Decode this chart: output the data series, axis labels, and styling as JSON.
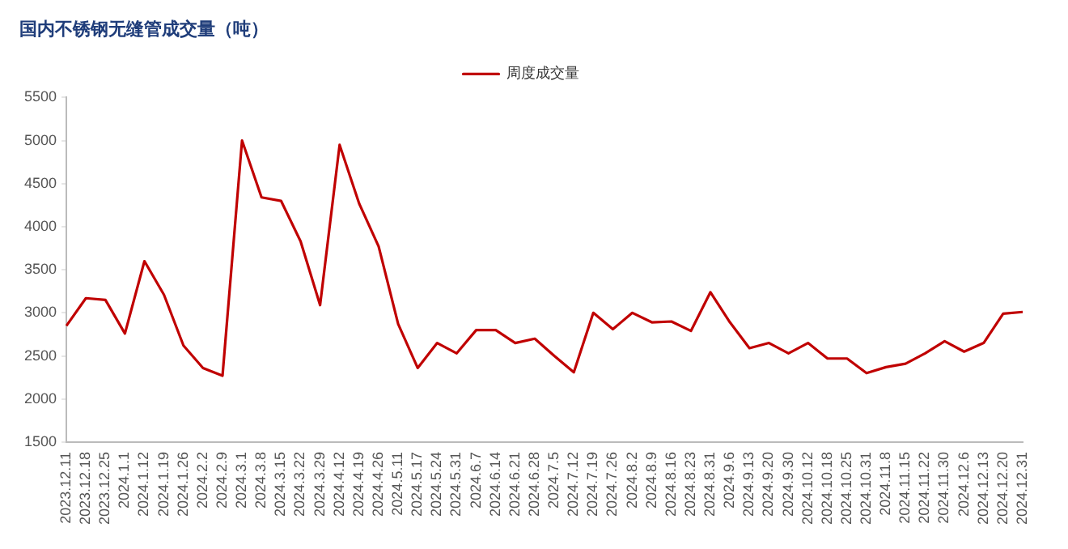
{
  "chart_data": {
    "type": "line",
    "title": "国内不锈钢无缝管成交量（吨）",
    "categories": [
      "2023.12.11",
      "2023.12.18",
      "2023.12.25",
      "2024.1.1",
      "2024.1.12",
      "2024.1.19",
      "2024.1.26",
      "2024.2.2",
      "2024.2.9",
      "2024.3.1",
      "2024.3.8",
      "2024.3.15",
      "2024.3.22",
      "2024.3.29",
      "2024.4.12",
      "2024.4.19",
      "2024.4.26",
      "2024.5.11",
      "2024.5.17",
      "2024.5.24",
      "2024.5.31",
      "2024.6.7",
      "2024.6.14",
      "2024.6.21",
      "2024.6.28",
      "2024.7.5",
      "2024.7.12",
      "2024.7.19",
      "2024.7.26",
      "2024.8.2",
      "2024.8.9",
      "2024.8.16",
      "2024.8.23",
      "2024.8.31",
      "2024.9.6",
      "2024.9.13",
      "2024.9.20",
      "2024.9.30",
      "2024.10.12",
      "2024.10.18",
      "2024.10.25",
      "2024.10.31",
      "2024.11.8",
      "2024.11.15",
      "2024.11.22",
      "2024.11.30",
      "2024.12.6",
      "2024.12.13",
      "2024.12.20",
      "2024.12.31"
    ],
    "series": [
      {
        "name": "周度成交量",
        "color": "#c00000",
        "values": [
          2850,
          3170,
          3150,
          2760,
          3600,
          3210,
          2620,
          2360,
          2270,
          5000,
          4340,
          4300,
          3830,
          3090,
          4950,
          4270,
          3770,
          2870,
          2360,
          2650,
          2530,
          2800,
          2800,
          2650,
          2700,
          2500,
          2310,
          3000,
          2810,
          3000,
          2890,
          2900,
          2790,
          3240,
          2890,
          2590,
          2650,
          2530,
          2650,
          2470,
          2470,
          2300,
          2370,
          2410,
          2530,
          2670,
          2550,
          2650,
          2990,
          3010
        ]
      }
    ],
    "ylim": [
      1500,
      5500
    ],
    "yticks": [
      1500,
      2000,
      2500,
      3000,
      3500,
      4000,
      4500,
      5000,
      5500
    ],
    "grid": false,
    "legend": "top",
    "marker": "none",
    "line_style": "solid"
  }
}
